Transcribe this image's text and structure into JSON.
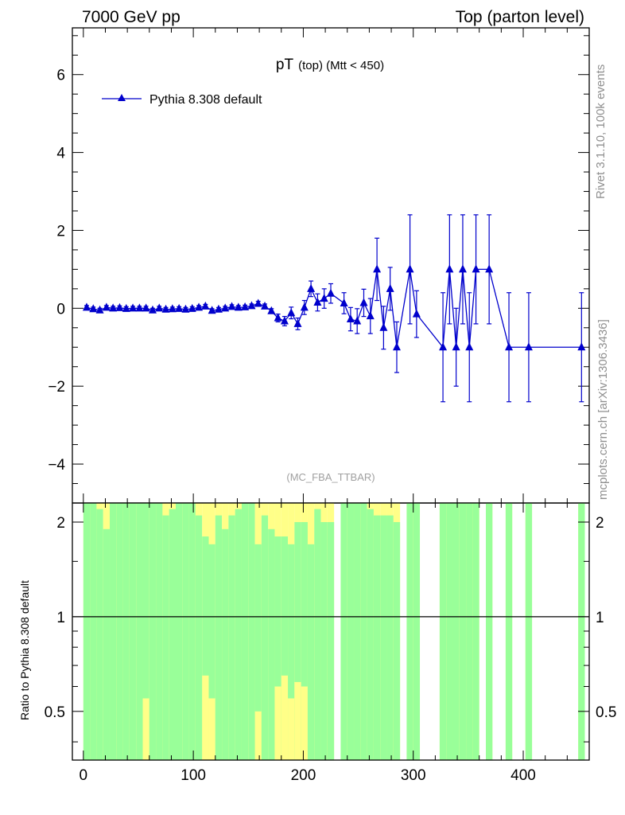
{
  "header": {
    "left": "7000 GeV pp",
    "right": "Top (parton level)"
  },
  "side_labels": {
    "rivet": "Rivet 3.1.10,  100k events",
    "mcplots": "mcplots.cern.ch [arXiv:1306.3436]"
  },
  "analysis_tag": "(MC_FBA_TTBAR)",
  "ratio_ylabel": "Ratio to Pythia 8.308 default",
  "colors": {
    "series": "#0000cc",
    "band_inner": "#99ff99",
    "band_outer": "#ffff88",
    "axis": "#000000"
  },
  "chart_data": [
    {
      "type": "line",
      "title_main": "pT",
      "title_sub": "(top) (Mtt < 450)",
      "xlim": [
        -10,
        460
      ],
      "ylim": [
        -5,
        7.2
      ],
      "xticks": [
        0,
        100,
        200,
        300,
        400
      ],
      "yticks": [
        -4,
        -2,
        0,
        2,
        4,
        6
      ],
      "ytick_labels": [
        "−4",
        "−2",
        "0",
        "2",
        "4",
        "6"
      ],
      "legend": {
        "position": "top-left",
        "label": "Pythia 8.308 default",
        "marker": "triangle"
      },
      "series": [
        {
          "name": "Pythia 8.308 default",
          "x": [
            3,
            9,
            15,
            21,
            27,
            33,
            39,
            45,
            51,
            57,
            63,
            69,
            75,
            81,
            87,
            93,
            99,
            105,
            111,
            117,
            123,
            129,
            135,
            141,
            147,
            153,
            159,
            165,
            171,
            177,
            183,
            189,
            195,
            201,
            207,
            213,
            219,
            225,
            237,
            243,
            249,
            255,
            261,
            267,
            273,
            279,
            285,
            297,
            303,
            327,
            333,
            339,
            345,
            351,
            357,
            369,
            387,
            405,
            453
          ],
          "y": [
            0.02,
            -0.02,
            -0.05,
            0.02,
            0.0,
            0.01,
            -0.01,
            0.0,
            0.0,
            0.0,
            -0.05,
            0.0,
            -0.03,
            -0.02,
            -0.01,
            -0.03,
            -0.01,
            0.02,
            0.05,
            -0.06,
            -0.03,
            0.0,
            0.04,
            0.02,
            0.03,
            0.06,
            0.12,
            0.05,
            -0.07,
            -0.25,
            -0.33,
            -0.12,
            -0.4,
            0.02,
            0.5,
            0.15,
            0.25,
            0.38,
            0.13,
            -0.28,
            -0.33,
            0.14,
            -0.2,
            1.0,
            -0.5,
            0.5,
            -1.0,
            1.0,
            -0.15,
            -1.0,
            1.0,
            -1.0,
            1.0,
            -1.0,
            1.0,
            1.0,
            -1.0,
            -1.0,
            -1.0
          ],
          "yerr": [
            0.05,
            0.05,
            0.05,
            0.05,
            0.05,
            0.05,
            0.05,
            0.05,
            0.05,
            0.05,
            0.05,
            0.05,
            0.05,
            0.05,
            0.05,
            0.05,
            0.05,
            0.05,
            0.05,
            0.05,
            0.05,
            0.05,
            0.05,
            0.05,
            0.05,
            0.05,
            0.06,
            0.06,
            0.06,
            0.1,
            0.12,
            0.15,
            0.15,
            0.18,
            0.2,
            0.22,
            0.25,
            0.25,
            0.27,
            0.3,
            0.32,
            0.35,
            0.45,
            0.8,
            0.55,
            0.55,
            0.65,
            1.4,
            0.6,
            1.4,
            1.4,
            1.0,
            1.4,
            1.4,
            1.4,
            1.4,
            1.4,
            1.4,
            1.4
          ]
        }
      ]
    },
    {
      "type": "area",
      "ylabel": "Ratio to Pythia 8.308 default",
      "ylim": [
        0.35,
        2.3
      ],
      "log_scale": true,
      "yticks": [
        0.5,
        1,
        2
      ],
      "ytick_labels": [
        "0.5",
        "1",
        "2"
      ],
      "reference_line": 1,
      "bins_start": [
        0,
        6,
        12,
        18,
        24,
        30,
        36,
        42,
        48,
        54,
        60,
        66,
        72,
        78,
        84,
        90,
        96,
        102,
        108,
        114,
        120,
        126,
        132,
        138,
        144,
        150,
        156,
        162,
        168,
        174,
        180,
        186,
        192,
        198,
        204,
        210,
        216,
        222,
        234,
        240,
        246,
        252,
        258,
        264,
        270,
        276,
        282,
        294,
        300,
        324,
        330,
        336,
        342,
        348,
        354,
        366,
        384,
        402,
        450
      ],
      "bin_width": 6,
      "band_inner_top": [
        2.3,
        2.3,
        2.2,
        1.9,
        2.3,
        2.3,
        2.3,
        2.3,
        2.3,
        2.3,
        2.3,
        2.3,
        2.1,
        2.2,
        2.3,
        2.3,
        2.3,
        2.1,
        1.8,
        1.7,
        2.1,
        1.9,
        2.1,
        2.2,
        2.3,
        2.3,
        1.7,
        2.1,
        1.9,
        1.8,
        1.8,
        1.7,
        2.0,
        2.0,
        1.7,
        2.2,
        2.0,
        2.0,
        2.3,
        2.3,
        2.3,
        2.3,
        2.2,
        2.1,
        2.1,
        2.1,
        2.0,
        2.3,
        2.3,
        2.3,
        2.3,
        2.3,
        2.3,
        2.3,
        2.3,
        2.3,
        2.3,
        2.3,
        2.3
      ],
      "band_outer_top": [
        2.3,
        2.3,
        2.3,
        2.3,
        2.3,
        2.3,
        2.3,
        2.3,
        2.3,
        2.3,
        2.3,
        2.3,
        2.3,
        2.3,
        2.3,
        2.3,
        2.3,
        2.3,
        2.3,
        2.3,
        2.3,
        2.3,
        2.3,
        2.3,
        2.3,
        2.3,
        2.3,
        2.3,
        2.3,
        2.3,
        2.3,
        2.3,
        2.3,
        2.3,
        2.3,
        2.3,
        2.3,
        2.3,
        2.3,
        2.3,
        2.3,
        2.3,
        2.3,
        2.3,
        2.3,
        2.3,
        2.3,
        2.3,
        2.3,
        2.3,
        2.3,
        2.3,
        2.3,
        2.3,
        2.3,
        2.3,
        2.3,
        2.3,
        2.3
      ],
      "band_inner_bottom": [
        0.35,
        0.35,
        0.35,
        0.35,
        0.35,
        0.35,
        0.35,
        0.35,
        0.35,
        0.35,
        0.35,
        0.35,
        0.35,
        0.35,
        0.35,
        0.35,
        0.35,
        0.35,
        0.35,
        0.35,
        0.35,
        0.35,
        0.35,
        0.35,
        0.35,
        0.35,
        0.35,
        0.35,
        0.35,
        0.35,
        0.35,
        0.35,
        0.35,
        0.35,
        0.35,
        0.35,
        0.35,
        0.35,
        0.35,
        0.35,
        0.35,
        0.35,
        0.35,
        0.35,
        0.35,
        0.35,
        0.35,
        0.35,
        0.35,
        0.35,
        0.35,
        0.35,
        0.35,
        0.35,
        0.35,
        0.35,
        0.35,
        0.35,
        0.35
      ],
      "band_outer_bottom_mark": [
        0,
        0,
        0,
        0,
        0,
        0,
        0,
        0,
        0,
        0.55,
        0,
        0,
        0,
        0,
        0,
        0,
        0,
        0,
        0.65,
        0.55,
        0,
        0,
        0,
        0,
        0,
        0,
        0.5,
        0,
        0,
        0.6,
        0.65,
        0.55,
        0.62,
        0.6,
        0,
        0,
        0,
        0,
        0,
        0,
        0,
        0,
        0,
        0,
        0,
        0,
        0,
        0,
        0,
        0,
        0,
        0,
        0,
        0,
        0,
        0,
        0,
        0,
        0
      ]
    }
  ]
}
